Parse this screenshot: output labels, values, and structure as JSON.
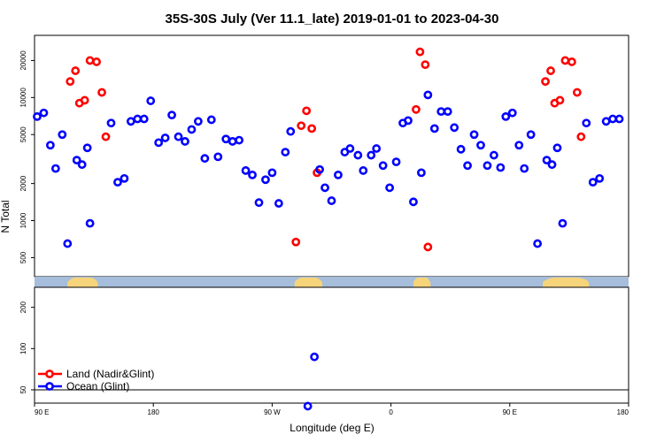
{
  "chart_data": {
    "type": "scatter",
    "title": "35S-30S July (Ver 11.1_late)   2019-01-01 to 2023-04-30",
    "xlabel": "Longitude (deg E)",
    "ylabel": "N Total",
    "x_ticks": [
      {
        "x": 90,
        "label": "90 E"
      },
      {
        "x": 180,
        "label": "180"
      },
      {
        "x": 270,
        "label": "90 W"
      },
      {
        "x": 360,
        "label": "0"
      },
      {
        "x": 450,
        "label": "90 E"
      },
      {
        "x": 540,
        "label": "180"
      }
    ],
    "xlim": [
      90,
      540
    ],
    "upper_panel": {
      "scale": "log",
      "ylim": [
        350,
        32000
      ],
      "y_ticks": [
        "500",
        "1000",
        "2000",
        "5000",
        "10000",
        "20000"
      ]
    },
    "lower_panel": {
      "scale": "log",
      "ylim": [
        40,
        280
      ],
      "y_ticks": [
        "50",
        "100",
        "200"
      ]
    },
    "legend": {
      "placement": "bottom-left",
      "entries": [
        {
          "label": "Land (Nadir&Glint)",
          "color": "#ff0000"
        },
        {
          "label": "Ocean (Glint)",
          "color": "#0000ff"
        }
      ]
    },
    "colors": {
      "land": "#ff0000",
      "ocean": "#0000ff",
      "strip_ocean": "#a6bddb",
      "strip_land": "#f6d47a"
    },
    "land_strip_segments": [
      [
        115,
        138
      ],
      [
        287,
        308
      ],
      [
        377,
        390
      ],
      [
        475,
        510
      ]
    ],
    "series": [
      {
        "name": "Land (Nadir&Glint)",
        "color": "#ff0000",
        "points": [
          {
            "x": 117,
            "y": 13500
          },
          {
            "x": 121,
            "y": 16500
          },
          {
            "x": 124,
            "y": 9000
          },
          {
            "x": 128,
            "y": 9500
          },
          {
            "x": 132,
            "y": 20000
          },
          {
            "x": 137,
            "y": 19500
          },
          {
            "x": 141,
            "y": 11000
          },
          {
            "x": 144,
            "y": 4800
          },
          {
            "x": 288,
            "y": 670
          },
          {
            "x": 292,
            "y": 5900
          },
          {
            "x": 296,
            "y": 7800
          },
          {
            "x": 300,
            "y": 5600
          },
          {
            "x": 304,
            "y": 2450
          },
          {
            "x": 379,
            "y": 8000
          },
          {
            "x": 382,
            "y": 23500
          },
          {
            "x": 386,
            "y": 18500
          },
          {
            "x": 388,
            "y": 610
          },
          {
            "x": 477,
            "y": 13500
          },
          {
            "x": 481,
            "y": 16500
          },
          {
            "x": 484,
            "y": 9000
          },
          {
            "x": 488,
            "y": 9500
          },
          {
            "x": 492,
            "y": 20000
          },
          {
            "x": 497,
            "y": 19500
          },
          {
            "x": 501,
            "y": 11000
          },
          {
            "x": 504,
            "y": 4800
          }
        ]
      },
      {
        "name": "Ocean (Glint)",
        "color": "#0000ff",
        "points": [
          {
            "x": 92,
            "y": 7000
          },
          {
            "x": 97,
            "y": 7500
          },
          {
            "x": 102,
            "y": 4100
          },
          {
            "x": 106,
            "y": 2650
          },
          {
            "x": 111,
            "y": 5000
          },
          {
            "x": 115,
            "y": 650
          },
          {
            "x": 122,
            "y": 3100
          },
          {
            "x": 126,
            "y": 2850
          },
          {
            "x": 130,
            "y": 3900
          },
          {
            "x": 132,
            "y": 950
          },
          {
            "x": 148,
            "y": 6200
          },
          {
            "x": 153,
            "y": 2050
          },
          {
            "x": 158,
            "y": 2200
          },
          {
            "x": 163,
            "y": 6400
          },
          {
            "x": 168,
            "y": 6700
          },
          {
            "x": 173,
            "y": 6700
          },
          {
            "x": 178,
            "y": 9400
          },
          {
            "x": 184,
            "y": 4300
          },
          {
            "x": 189,
            "y": 4700
          },
          {
            "x": 194,
            "y": 7200
          },
          {
            "x": 199,
            "y": 4800
          },
          {
            "x": 204,
            "y": 4400
          },
          {
            "x": 209,
            "y": 5500
          },
          {
            "x": 214,
            "y": 6400
          },
          {
            "x": 219,
            "y": 3200
          },
          {
            "x": 224,
            "y": 6600
          },
          {
            "x": 229,
            "y": 3300
          },
          {
            "x": 235,
            "y": 4600
          },
          {
            "x": 240,
            "y": 4400
          },
          {
            "x": 245,
            "y": 4500
          },
          {
            "x": 250,
            "y": 2550
          },
          {
            "x": 255,
            "y": 2350
          },
          {
            "x": 260,
            "y": 1400
          },
          {
            "x": 265,
            "y": 2150
          },
          {
            "x": 270,
            "y": 2450
          },
          {
            "x": 275,
            "y": 1380
          },
          {
            "x": 280,
            "y": 3600
          },
          {
            "x": 284,
            "y": 5300
          },
          {
            "x": 306,
            "y": 2600
          },
          {
            "x": 310,
            "y": 1850
          },
          {
            "x": 315,
            "y": 1450
          },
          {
            "x": 320,
            "y": 2350
          },
          {
            "x": 325,
            "y": 3600
          },
          {
            "x": 329,
            "y": 3850
          },
          {
            "x": 335,
            "y": 3400
          },
          {
            "x": 339,
            "y": 2550
          },
          {
            "x": 345,
            "y": 3400
          },
          {
            "x": 349,
            "y": 3850
          },
          {
            "x": 354,
            "y": 2800
          },
          {
            "x": 359,
            "y": 1850
          },
          {
            "x": 364,
            "y": 3000
          },
          {
            "x": 369,
            "y": 6200
          },
          {
            "x": 373,
            "y": 6500
          },
          {
            "x": 377,
            "y": 1420
          },
          {
            "x": 383,
            "y": 2450
          },
          {
            "x": 388,
            "y": 10500
          },
          {
            "x": 393,
            "y": 5600
          },
          {
            "x": 398,
            "y": 7700
          },
          {
            "x": 403,
            "y": 7700
          },
          {
            "x": 408,
            "y": 5700
          },
          {
            "x": 413,
            "y": 3800
          },
          {
            "x": 418,
            "y": 2800
          },
          {
            "x": 423,
            "y": 5000
          },
          {
            "x": 428,
            "y": 4100
          },
          {
            "x": 433,
            "y": 2800
          },
          {
            "x": 438,
            "y": 3400
          },
          {
            "x": 443,
            "y": 2700
          },
          {
            "x": 447,
            "y": 7000
          },
          {
            "x": 452,
            "y": 7500
          },
          {
            "x": 457,
            "y": 4100
          },
          {
            "x": 461,
            "y": 2650
          },
          {
            "x": 466,
            "y": 5000
          },
          {
            "x": 471,
            "y": 650
          },
          {
            "x": 478,
            "y": 3100
          },
          {
            "x": 482,
            "y": 2850
          },
          {
            "x": 486,
            "y": 3900
          },
          {
            "x": 490,
            "y": 950
          },
          {
            "x": 508,
            "y": 6200
          },
          {
            "x": 513,
            "y": 2050
          },
          {
            "x": 518,
            "y": 2200
          },
          {
            "x": 523,
            "y": 6400
          },
          {
            "x": 528,
            "y": 6700
          },
          {
            "x": 533,
            "y": 6700
          }
        ]
      },
      {
        "name": "Ocean (Glint) lower panel",
        "color": "#0000ff",
        "panel": "lower",
        "points": [
          {
            "x": 302,
            "y": 87
          },
          {
            "x": 297,
            "y": 38
          }
        ]
      }
    ]
  }
}
